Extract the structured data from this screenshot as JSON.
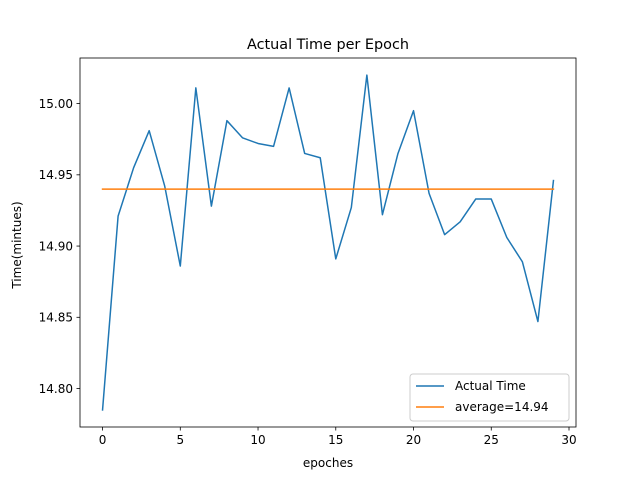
{
  "chart_data": {
    "type": "line",
    "title": "Actual Time per Epoch",
    "xlabel": "epoches",
    "ylabel": "Time(mintues)",
    "xlim": [
      -1.45,
      30.45
    ],
    "ylim": [
      14.773,
      15.032
    ],
    "xticks": [
      0,
      5,
      10,
      15,
      20,
      25,
      30
    ],
    "xtick_labels": [
      "0",
      "5",
      "10",
      "15",
      "20",
      "25",
      "30"
    ],
    "yticks": [
      14.8,
      14.85,
      14.9,
      14.95,
      15.0
    ],
    "ytick_labels": [
      "14.80",
      "14.85",
      "14.90",
      "14.95",
      "15.00"
    ],
    "grid": false,
    "legend_position": "bottom-right",
    "series": [
      {
        "name": "Actual Time",
        "color": "#1f77b4",
        "x": [
          0,
          1,
          2,
          3,
          4,
          5,
          6,
          7,
          8,
          9,
          10,
          11,
          12,
          13,
          14,
          15,
          16,
          17,
          18,
          19,
          20,
          21,
          22,
          23,
          24,
          25,
          26,
          27,
          28,
          29
        ],
        "values": [
          14.785,
          14.921,
          14.955,
          14.981,
          14.942,
          14.886,
          15.011,
          14.928,
          14.988,
          14.976,
          14.972,
          14.97,
          15.011,
          14.965,
          14.962,
          14.891,
          14.927,
          15.02,
          14.922,
          14.965,
          14.995,
          14.937,
          14.908,
          14.917,
          14.933,
          14.933,
          14.906,
          14.889,
          14.847,
          14.946
        ]
      },
      {
        "name": "average=14.94",
        "color": "#ff7f0e",
        "x": [
          0,
          29
        ],
        "values": [
          14.94,
          14.94
        ]
      }
    ]
  }
}
